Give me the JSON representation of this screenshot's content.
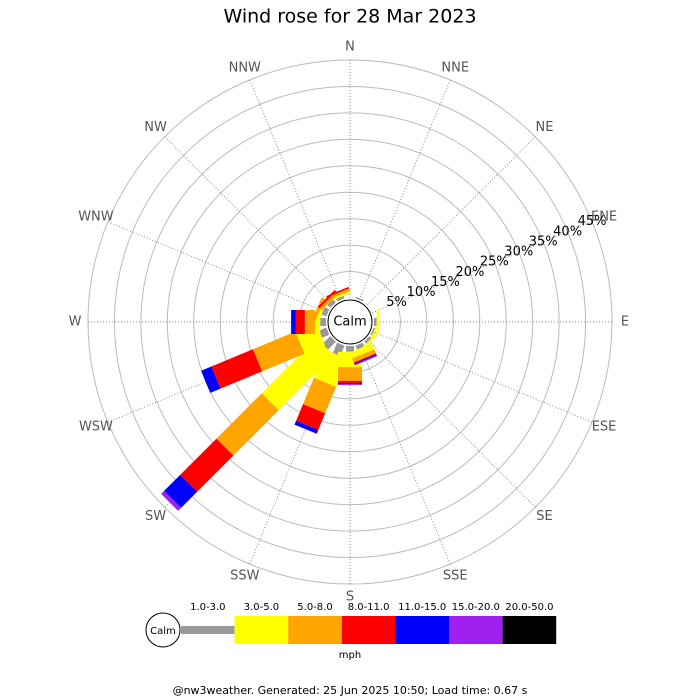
{
  "chart_data": {
    "type": "windrose",
    "title": "Wind rose for 28 Mar 2023",
    "directions": [
      "N",
      "NNE",
      "NE",
      "ENE",
      "E",
      "ESE",
      "SE",
      "SSE",
      "S",
      "SSW",
      "SW",
      "WSW",
      "W",
      "WNW",
      "NW",
      "NNW"
    ],
    "calm_label": "Calm",
    "rlim": [
      0,
      45
    ],
    "rticks": [
      {
        "value": 5,
        "label": "5%"
      },
      {
        "value": 10,
        "label": "10%"
      },
      {
        "value": 15,
        "label": "15%"
      },
      {
        "value": 20,
        "label": "20%"
      },
      {
        "value": 25,
        "label": "25%"
      },
      {
        "value": 30,
        "label": "30%"
      },
      {
        "value": 35,
        "label": "35%"
      },
      {
        "value": 40,
        "label": "40%"
      },
      {
        "value": 45,
        "label": "45%"
      }
    ],
    "unit": "mph",
    "series": [
      {
        "name": "1.0-3.0",
        "color": "#999999",
        "values": [
          0,
          0.3,
          0,
          0,
          0.5,
          0.3,
          0.5,
          0.8,
          1.1,
          2.1,
          2.1,
          1.5,
          1.1,
          1,
          0.8,
          0.5
        ]
      },
      {
        "name": "3.0-5.0",
        "color": "#ffff00",
        "values": [
          0,
          0,
          0,
          0,
          0.4,
          0.3,
          0.4,
          1.2,
          2.9,
          5.7,
          14.7,
          4.2,
          1.0,
          0.6,
          0,
          0.4
        ]
      },
      {
        "name": "5.0-8.0",
        "color": "#ffa500",
        "values": [
          0,
          0,
          0,
          0,
          0,
          0,
          0,
          0.8,
          2.6,
          5.4,
          12.1,
          8.7,
          1.9,
          0.6,
          0.6,
          0.5
        ]
      },
      {
        "name": "8.0-11.0",
        "color": "#ff0000",
        "values": [
          0,
          0,
          0,
          0,
          0,
          0,
          0,
          0.2,
          0.4,
          3.4,
          9.7,
          8.5,
          1.7,
          0,
          0.4,
          0.3
        ]
      },
      {
        "name": "11.0-15.0",
        "color": "#0000ff",
        "values": [
          0,
          0,
          0,
          0,
          0,
          0,
          0,
          0.2,
          0.2,
          0.8,
          4.3,
          2.1,
          0.9,
          0,
          0,
          0
        ]
      },
      {
        "name": "15.0-20.0",
        "color": "#a020f0",
        "values": [
          0,
          0,
          0,
          0,
          0,
          0,
          0,
          0.2,
          0.2,
          0,
          0.8,
          0,
          0,
          0,
          0,
          0
        ]
      },
      {
        "name": "20.0-50.0",
        "color": "#000000",
        "values": [
          0,
          0,
          0,
          0,
          0,
          0,
          0,
          0,
          0,
          0,
          0,
          0,
          0,
          0,
          0,
          0
        ]
      }
    ],
    "footer": "@nw3weather. Generated: 25 Jun 2025 10:50; Load time: 0.67 s"
  }
}
